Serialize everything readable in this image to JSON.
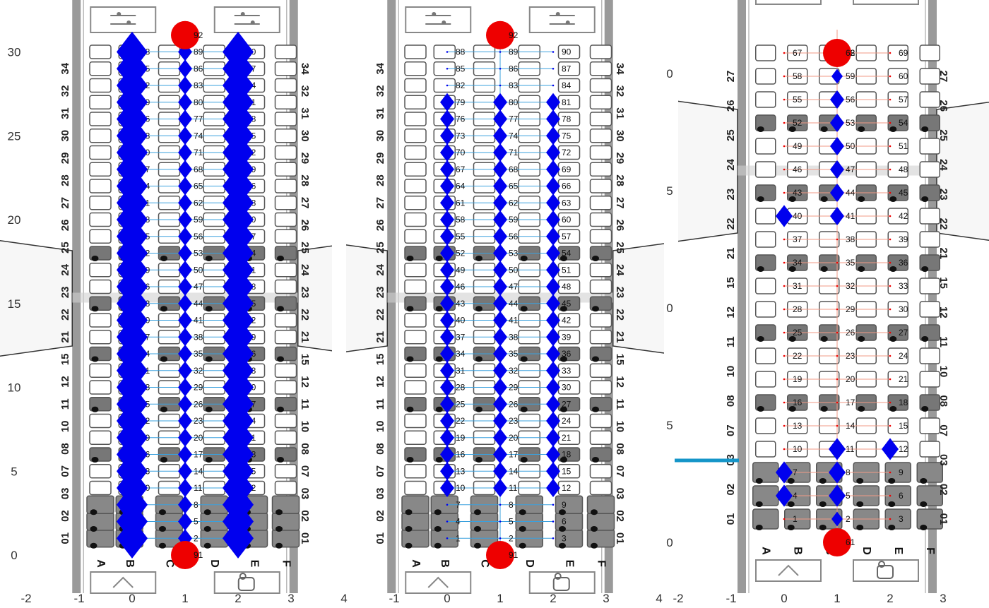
{
  "colors": {
    "node": "#0000ee",
    "terminal": "#ee0000",
    "edge_blue": "#3aa0dd",
    "edge_red": "#f09a86",
    "cabin": "#9a9a9a",
    "seat_outline": "#555555",
    "seat_fill": "#777777",
    "seat_premium_fill": "#888888",
    "marker": "#1495c8"
  },
  "icons": [
    "toilet-sign-icon",
    "hanger-icon",
    "cup-icon"
  ],
  "chart_data": [
    {
      "type": "scatter",
      "title": "",
      "xlim": [
        -2,
        4
      ],
      "ylim": [
        -1.5,
        31.5
      ],
      "x_ticks": [
        "-2",
        "-1",
        "0",
        "1",
        "2",
        "3",
        "4"
      ],
      "y_ticks": [
        "0",
        "5",
        "10",
        "15",
        "20",
        "25",
        "30"
      ],
      "row_labels": [
        "01",
        "02",
        "03",
        "07",
        "08",
        "10",
        "11",
        "12",
        "15",
        "21",
        "22",
        "23",
        "24",
        "25",
        "26",
        "27",
        "28",
        "29",
        "30",
        "31",
        "32",
        "34"
      ],
      "column_labels": [
        "A",
        "B",
        "C",
        "D",
        "E",
        "F"
      ],
      "nodes": {
        "columns": [
          0,
          1,
          2
        ],
        "node_labels": [
          [
            "1",
            "2",
            "3"
          ],
          [
            "4",
            "5",
            "6"
          ],
          [
            "7",
            "8",
            "9"
          ],
          [
            "10",
            "11",
            "12"
          ],
          [
            "13",
            "14",
            "15"
          ],
          [
            "16",
            "17",
            "18"
          ],
          [
            "19",
            "20",
            "21"
          ],
          [
            "22",
            "23",
            "24"
          ],
          [
            "25",
            "26",
            "27"
          ],
          [
            "28",
            "29",
            "30"
          ],
          [
            "31",
            "32",
            "33"
          ],
          [
            "34",
            "35",
            "36"
          ],
          [
            "37",
            "38",
            "39"
          ],
          [
            "40",
            "41",
            "42"
          ],
          [
            "43",
            "44",
            "45"
          ],
          [
            "46",
            "47",
            "48"
          ],
          [
            "49",
            "50",
            "51"
          ],
          [
            "52",
            "53",
            "54"
          ],
          [
            "55",
            "56",
            "57"
          ],
          [
            "58",
            "59",
            "60"
          ],
          [
            "61",
            "62",
            "63"
          ],
          [
            "64",
            "65",
            "66"
          ],
          [
            "67",
            "68",
            "69"
          ],
          [
            "70",
            "71",
            "72"
          ],
          [
            "73",
            "74",
            "75"
          ],
          [
            "76",
            "77",
            "78"
          ],
          [
            "79",
            "80",
            "81"
          ],
          [
            "82",
            "83",
            "84"
          ],
          [
            "85",
            "86",
            "87"
          ],
          [
            "88",
            "89",
            "90"
          ]
        ]
      },
      "terminals": [
        {
          "label": "91",
          "x": 1,
          "y": 0
        },
        {
          "label": "92",
          "x": 1,
          "y": 31
        }
      ],
      "markers": [
        {
          "x": 0,
          "rows": [
            1,
            30
          ],
          "size": 2.2,
          "shape": "diamond"
        },
        {
          "x": 1,
          "rows": [
            1,
            30
          ],
          "size": 1,
          "shape": "diamond"
        },
        {
          "x": 2,
          "rows": [
            1,
            30
          ],
          "size": 2.2,
          "shape": "diamond"
        }
      ]
    },
    {
      "type": "scatter",
      "title": "",
      "xlim": [
        -1,
        4
      ],
      "ylim": [
        -1.5,
        31.5
      ],
      "x_ticks": [
        "-1",
        "0",
        "1",
        "2",
        "3",
        "4"
      ],
      "y_ticks": [],
      "row_labels": [
        "01",
        "02",
        "03",
        "07",
        "08",
        "10",
        "11",
        "12",
        "15",
        "21",
        "22",
        "23",
        "24",
        "25",
        "26",
        "27",
        "28",
        "29",
        "30",
        "31",
        "32",
        "34"
      ],
      "column_labels": [
        "A",
        "B",
        "C",
        "D",
        "E",
        "F"
      ],
      "nodes": {
        "columns": [
          0,
          1,
          2
        ],
        "node_labels": [
          [
            "1",
            "2",
            "3"
          ],
          [
            "4",
            "5",
            "6"
          ],
          [
            "7",
            "8",
            "9"
          ],
          [
            "10",
            "11",
            "12"
          ],
          [
            "13",
            "14",
            "15"
          ],
          [
            "16",
            "17",
            "18"
          ],
          [
            "19",
            "20",
            "21"
          ],
          [
            "22",
            "23",
            "24"
          ],
          [
            "25",
            "26",
            "27"
          ],
          [
            "28",
            "29",
            "30"
          ],
          [
            "31",
            "32",
            "33"
          ],
          [
            "34",
            "35",
            "36"
          ],
          [
            "37",
            "38",
            "39"
          ],
          [
            "40",
            "41",
            "42"
          ],
          [
            "43",
            "44",
            "45"
          ],
          [
            "46",
            "47",
            "48"
          ],
          [
            "49",
            "50",
            "51"
          ],
          [
            "52",
            "53",
            "54"
          ],
          [
            "55",
            "56",
            "57"
          ],
          [
            "58",
            "59",
            "60"
          ],
          [
            "61",
            "62",
            "63"
          ],
          [
            "64",
            "65",
            "66"
          ],
          [
            "67",
            "68",
            "69"
          ],
          [
            "70",
            "71",
            "72"
          ],
          [
            "73",
            "74",
            "75"
          ],
          [
            "76",
            "77",
            "78"
          ],
          [
            "79",
            "80",
            "81"
          ],
          [
            "82",
            "83",
            "84"
          ],
          [
            "85",
            "86",
            "87"
          ],
          [
            "88",
            "89",
            "90"
          ]
        ]
      },
      "terminals": [
        {
          "label": "91",
          "x": 1,
          "y": 0
        },
        {
          "label": "92",
          "x": 1,
          "y": 31
        }
      ],
      "markers": [
        {
          "x": 0,
          "rows": [
            4,
            27
          ],
          "size": 1,
          "shape": "diamond"
        },
        {
          "x": 1,
          "rows": [
            4,
            27
          ],
          "size": 1,
          "shape": "diamond"
        },
        {
          "x": 2,
          "rows": [
            4,
            27
          ],
          "size": 1,
          "shape": "diamond"
        }
      ]
    },
    {
      "type": "scatter",
      "title": "",
      "xlim": [
        -2,
        3
      ],
      "ylim": [
        -1,
        20.5
      ],
      "x_ticks": [
        "-2",
        "-1",
        "0",
        "1",
        "2",
        "3"
      ],
      "y_ticks": [
        "0",
        "5",
        "0",
        "5",
        "0"
      ],
      "row_labels": [
        "01",
        "02",
        "03",
        "07",
        "08",
        "10",
        "11",
        "12",
        "15",
        "21",
        "22",
        "23",
        "24",
        "25",
        "26",
        "27"
      ],
      "column_labels": [
        "A",
        "B",
        "C",
        "D",
        "E",
        "F"
      ],
      "nodes": {
        "columns": [
          0,
          1,
          2
        ],
        "node_labels": [
          [
            "1",
            "2",
            "3"
          ],
          [
            "4",
            "5",
            "6"
          ],
          [
            "7",
            "8",
            "9"
          ],
          [
            "10",
            "11",
            "12"
          ],
          [
            "13",
            "14",
            "15"
          ],
          [
            "16",
            "17",
            "18"
          ],
          [
            "19",
            "20",
            "21"
          ],
          [
            "22",
            "23",
            "24"
          ],
          [
            "25",
            "26",
            "27"
          ],
          [
            "28",
            "29",
            "30"
          ],
          [
            "31",
            "32",
            "33"
          ],
          [
            "34",
            "35",
            "36"
          ],
          [
            "37",
            "38",
            "39"
          ],
          [
            "40",
            "41",
            "42"
          ],
          [
            "43",
            "44",
            "45"
          ],
          [
            "46",
            "47",
            "48"
          ],
          [
            "49",
            "50",
            "51"
          ],
          [
            "52",
            "53",
            "54"
          ],
          [
            "55",
            "56",
            "57"
          ],
          [
            "58",
            "59",
            "60"
          ],
          [
            "67",
            "68",
            "69"
          ]
        ]
      },
      "terminals": [
        {
          "label": "61",
          "x": 1,
          "y": 0
        },
        {
          "label": "62",
          "x": 1,
          "y": 21
        }
      ],
      "markers": [
        {
          "x": 1,
          "y": 1,
          "size": 0.8,
          "shape": "diamond"
        },
        {
          "x": 1,
          "y": 2,
          "size": 1.2,
          "shape": "diamond"
        },
        {
          "x": 0,
          "y": 2,
          "size": 1.2,
          "shape": "diamond"
        },
        {
          "x": 1,
          "y": 3,
          "size": 1.2,
          "shape": "diamond"
        },
        {
          "x": 0,
          "y": 3,
          "size": 1.2,
          "shape": "diamond"
        },
        {
          "x": 1,
          "y": 4,
          "size": 1.2,
          "shape": "diamond"
        },
        {
          "x": 2,
          "y": 4,
          "size": 1.2,
          "shape": "diamond"
        },
        {
          "x": 0,
          "y": 14,
          "size": 1.2,
          "shape": "diamond"
        },
        {
          "x": 1,
          "y": 14,
          "size": 1,
          "shape": "diamond"
        },
        {
          "x": 1,
          "y": 15,
          "size": 1,
          "shape": "diamond"
        },
        {
          "x": 1,
          "y": 16,
          "size": 1,
          "shape": "diamond"
        },
        {
          "x": 1,
          "y": 17,
          "size": 1,
          "shape": "diamond"
        },
        {
          "x": 1,
          "y": 18,
          "size": 1,
          "shape": "diamond"
        },
        {
          "x": 1,
          "y": 19,
          "size": 1,
          "shape": "diamond"
        },
        {
          "x": 1,
          "y": 20,
          "size": 0.8,
          "shape": "diamond"
        }
      ]
    }
  ]
}
